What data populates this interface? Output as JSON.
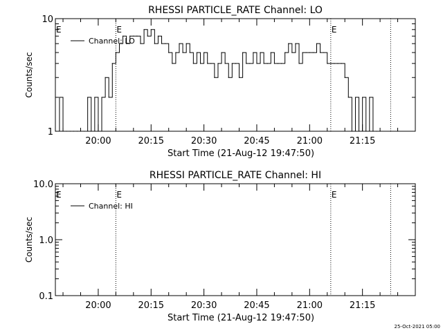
{
  "footer": {
    "timestamp": "25-Oct-2021 05:00"
  },
  "chart_data": [
    {
      "type": "line",
      "title": "RHESSI PARTICLE_RATE Channel: LO",
      "xlabel": "Start Time (21-Aug-12 19:47:50)",
      "ylabel": "Counts/sec",
      "y_scale": "log",
      "ylim": [
        1,
        10
      ],
      "y_ticks": [
        {
          "value": 1,
          "label": "1"
        },
        {
          "value": 10,
          "label": "10"
        }
      ],
      "x_ticks": [
        "20:00",
        "20:15",
        "20:30",
        "20:45",
        "21:00",
        "21:15"
      ],
      "legend": {
        "label": "Channel: LO",
        "position": "top-left"
      },
      "event_markers": [
        {
          "time": "20:05",
          "label": "E"
        },
        {
          "time": "21:06",
          "label": "E"
        },
        {
          "time": "21:23",
          "label": ""
        }
      ],
      "series": [
        {
          "name": "Channel: LO",
          "x": [
            "19:48",
            "19:49",
            "19:50",
            "19:51",
            "19:52",
            "19:53",
            "19:54",
            "19:55",
            "19:56",
            "19:57",
            "19:58",
            "19:59",
            "20:00",
            "20:01",
            "20:02",
            "20:03",
            "20:04",
            "20:05",
            "20:06",
            "20:07",
            "20:08",
            "20:09",
            "20:10",
            "20:11",
            "20:12",
            "20:13",
            "20:14",
            "20:15",
            "20:16",
            "20:17",
            "20:18",
            "20:19",
            "20:20",
            "20:21",
            "20:22",
            "20:23",
            "20:24",
            "20:25",
            "20:26",
            "20:27",
            "20:28",
            "20:29",
            "20:30",
            "20:31",
            "20:32",
            "20:33",
            "20:34",
            "20:35",
            "20:36",
            "20:37",
            "20:38",
            "20:39",
            "20:40",
            "20:41",
            "20:42",
            "20:43",
            "20:44",
            "20:45",
            "20:46",
            "20:47",
            "20:48",
            "20:49",
            "20:50",
            "20:51",
            "20:52",
            "20:53",
            "20:54",
            "20:55",
            "20:56",
            "20:57",
            "20:58",
            "20:59",
            "21:00",
            "21:01",
            "21:02",
            "21:03",
            "21:04",
            "21:05",
            "21:06",
            "21:07",
            "21:08",
            "21:09",
            "21:10",
            "21:11",
            "21:12",
            "21:13",
            "21:14",
            "21:15",
            "21:16",
            "21:17",
            "21:18",
            "21:19",
            "21:20"
          ],
          "y": [
            1,
            2,
            1,
            1,
            1,
            1,
            1,
            1,
            1,
            2,
            1,
            2,
            1,
            2,
            3,
            2,
            4,
            5,
            6,
            7,
            6,
            7,
            7,
            7,
            6,
            8,
            7,
            8,
            6,
            7,
            6,
            6,
            5,
            4,
            5,
            6,
            5,
            6,
            5,
            4,
            5,
            4,
            5,
            4,
            4,
            3,
            4,
            5,
            4,
            3,
            4,
            4,
            3,
            5,
            4,
            4,
            5,
            4,
            5,
            4,
            4,
            5,
            4,
            4,
            4,
            5,
            6,
            5,
            6,
            4,
            5,
            5,
            5,
            5,
            6,
            5,
            5,
            4,
            4,
            4,
            4,
            4,
            3,
            2,
            1,
            2,
            1,
            2,
            1,
            2,
            1,
            1,
            1
          ]
        }
      ]
    },
    {
      "type": "line",
      "title": "RHESSI PARTICLE_RATE Channel: HI",
      "xlabel": "Start Time (21-Aug-12 19:47:50)",
      "ylabel": "Counts/sec",
      "y_scale": "log",
      "ylim": [
        0.1,
        10
      ],
      "y_ticks": [
        {
          "value": 0.1,
          "label": "0.1"
        },
        {
          "value": 1,
          "label": "1.0"
        },
        {
          "value": 10,
          "label": "10.0"
        }
      ],
      "x_ticks": [
        "20:00",
        "20:15",
        "20:30",
        "20:45",
        "21:00",
        "21:15"
      ],
      "legend": {
        "label": "Channel: HI",
        "position": "top-left"
      },
      "event_markers": [
        {
          "time": "20:05",
          "label": "E"
        },
        {
          "time": "21:06",
          "label": "E"
        },
        {
          "time": "21:23",
          "label": ""
        }
      ],
      "series": [
        {
          "name": "Channel: HI",
          "x": [],
          "y": []
        }
      ]
    }
  ]
}
